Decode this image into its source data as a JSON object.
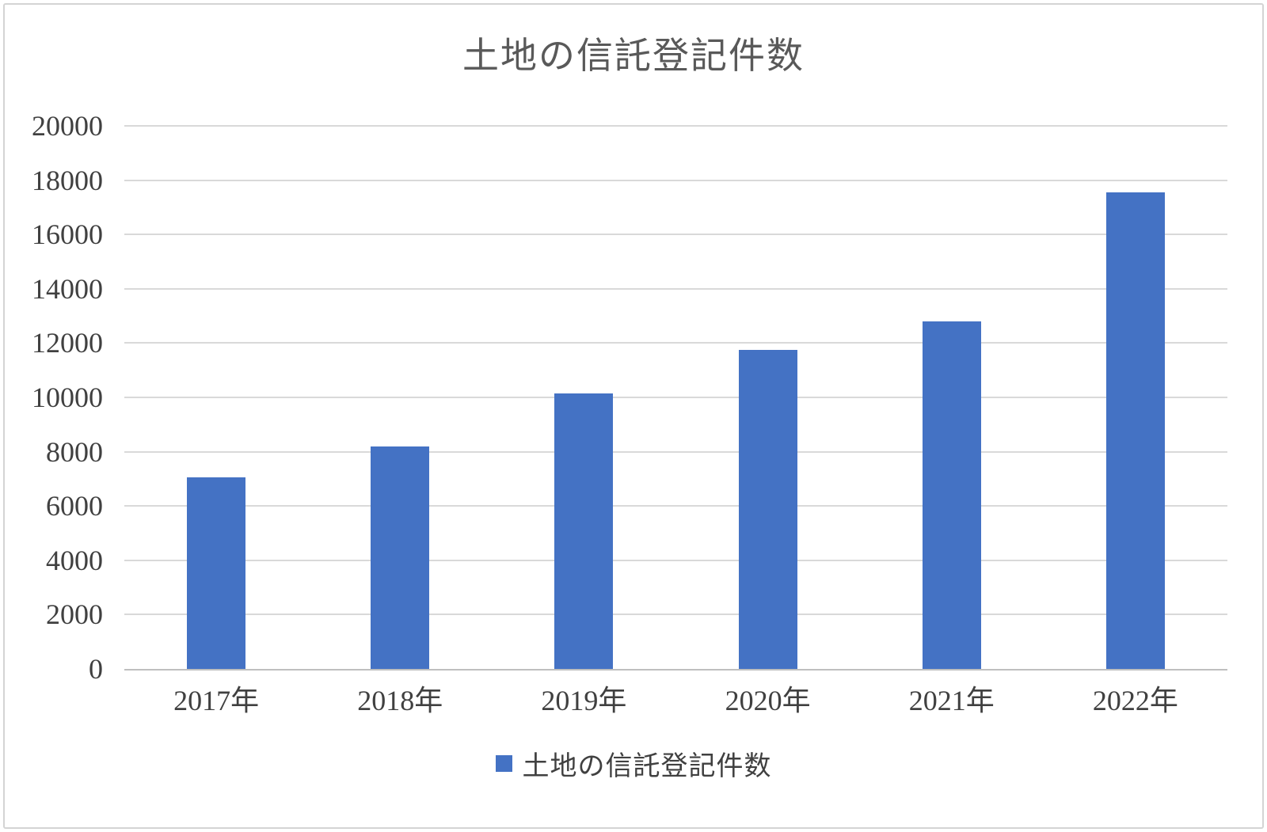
{
  "chart_data": {
    "type": "bar",
    "title": "土地の信託登記件数",
    "categories": [
      "2017年",
      "2018年",
      "2019年",
      "2020年",
      "2021年",
      "2022年"
    ],
    "values": [
      7050,
      8200,
      10150,
      11750,
      12800,
      17550
    ],
    "xlabel": "",
    "ylabel": "",
    "ylim": [
      0,
      20000
    ],
    "ytick_step": 2000,
    "ytick_labels": [
      "0",
      "2000",
      "4000",
      "6000",
      "8000",
      "10000",
      "12000",
      "14000",
      "16000",
      "18000",
      "20000"
    ],
    "grid": true,
    "legend": {
      "position": "bottom",
      "label": "土地の信託登記件数"
    },
    "colors": {
      "bar": "#4472c4",
      "gridline": "#d9d9d9",
      "axis_line": "#bfbfbf",
      "tick_text": "#404040",
      "title_text": "#595959",
      "frame_border": "#d4d4d4",
      "background": "#ffffff"
    }
  }
}
